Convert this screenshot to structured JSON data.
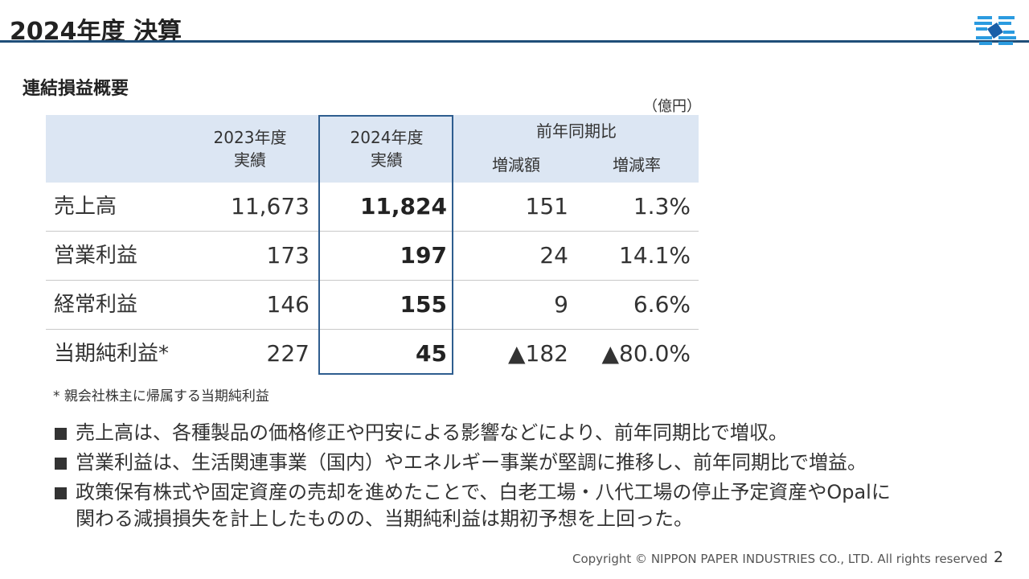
{
  "header": {
    "title": "2024年度 決算",
    "logo_icon": "nippon-paper-logo-icon"
  },
  "section": {
    "heading": "連結損益概要",
    "unit": "（億円）"
  },
  "table": {
    "headers": {
      "col_2023_line1": "2023年度",
      "col_2023_line2": "実績",
      "col_2024_line1": "2024年度",
      "col_2024_line2": "実績",
      "yoy_group": "前年同期比",
      "yoy_diff": "増減額",
      "yoy_rate": "増減率"
    },
    "rows": [
      {
        "label": "売上高",
        "fy2023": "11,673",
        "fy2024": "11,824",
        "diff": "151",
        "rate": "1.3%"
      },
      {
        "label": "営業利益",
        "fy2023": "173",
        "fy2024": "197",
        "diff": "24",
        "rate": "14.1%"
      },
      {
        "label": "経常利益",
        "fy2023": "146",
        "fy2024": "155",
        "diff": "9",
        "rate": "6.6%"
      },
      {
        "label": "当期純利益*",
        "fy2023": "227",
        "fy2024": "45",
        "diff": "▲182",
        "rate": "▲80.0%"
      }
    ]
  },
  "footnote": "* 親会社株主に帰属する当期純利益",
  "bullets": [
    {
      "lines": [
        "売上高は、各種製品の価格修正や円安による影響などにより、前年同期比で増収。"
      ]
    },
    {
      "lines": [
        "営業利益は、生活関連事業（国内）やエネルギー事業が堅調に推移し、前年同期比で増益。"
      ]
    },
    {
      "lines": [
        "政策保有株式や固定資産の売却を進めたことで、白老工場・八代工場の停止予定資産やOpalに",
        "関わる減損損失を計上したものの、当期純利益は期初予想を上回った。"
      ]
    }
  ],
  "footer": {
    "copyright": "Copyright © NIPPON PAPER INDUSTRIES CO., LTD. All rights reserved",
    "page_number": "2"
  },
  "colors": {
    "title_rule": "#1f4e79",
    "header_fill": "#dce6f3",
    "highlight_border": "#2e5d8f"
  }
}
